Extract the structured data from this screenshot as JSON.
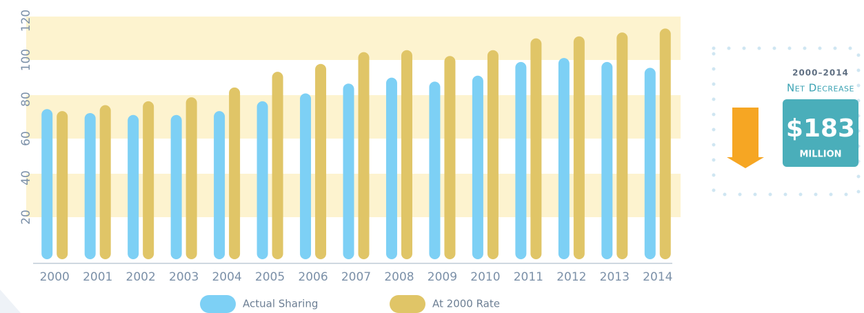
{
  "chart_data": {
    "type": "bar",
    "categories": [
      "2000",
      "2001",
      "2002",
      "2003",
      "2004",
      "2005",
      "2006",
      "2007",
      "2008",
      "2009",
      "2010",
      "2011",
      "2012",
      "2013",
      "2014"
    ],
    "series": [
      {
        "name": "Actual Sharing",
        "color": "#7dd0f5",
        "values": [
          75,
          73,
          72,
          72,
          74,
          79,
          83,
          88,
          91,
          89,
          92,
          99,
          101,
          99,
          96
        ]
      },
      {
        "name": "At 2000 Rate",
        "color": "#e0c567",
        "values": [
          74,
          77,
          79,
          81,
          86,
          94,
          98,
          104,
          105,
          102,
          105,
          111,
          112,
          114,
          116
        ]
      }
    ],
    "ylim": [
      0,
      120
    ],
    "yticks": [
      20,
      40,
      60,
      80,
      100,
      120
    ],
    "grid": "bands",
    "band_color": "#fdf3cf",
    "legend": "bottom",
    "panel": {
      "period": "2000–2014",
      "label": "Net Decrease",
      "amount": "$183",
      "unit": "MILLION"
    }
  }
}
